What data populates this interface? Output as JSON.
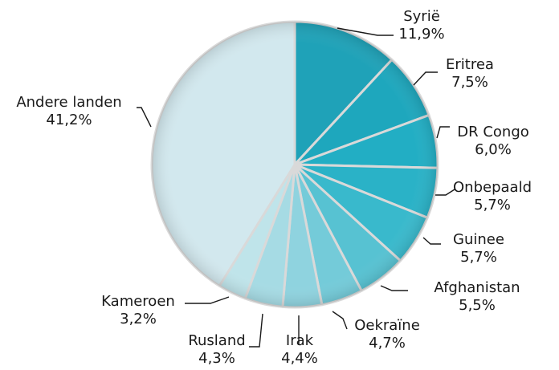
{
  "chart_data": {
    "type": "pie",
    "slices": [
      {
        "label": "Syrië",
        "value": 11.9,
        "display": "11,9%",
        "color": "#1fa2b8"
      },
      {
        "label": "Eritrea",
        "value": 7.5,
        "display": "7,5%",
        "color": "#1ea7bd"
      },
      {
        "label": "DR Congo",
        "value": 6.0,
        "display": "6,0%",
        "color": "#22aec4"
      },
      {
        "label": "Onbepaald",
        "value": 5.7,
        "display": "5,7%",
        "color": "#2ab2c7"
      },
      {
        "label": "Guinee",
        "value": 5.7,
        "display": "5,7%",
        "color": "#39b9cc"
      },
      {
        "label": "Afghanistan",
        "value": 5.5,
        "display": "5,5%",
        "color": "#57c2d2"
      },
      {
        "label": "Oekraïne",
        "value": 4.7,
        "display": "4,7%",
        "color": "#74cbd9"
      },
      {
        "label": "Irak",
        "value": 4.4,
        "display": "4,4%",
        "color": "#8fd3df"
      },
      {
        "label": "Rusland",
        "value": 4.3,
        "display": "4,3%",
        "color": "#a6dbe4"
      },
      {
        "label": "Kameroen",
        "value": 3.2,
        "display": "3,2%",
        "color": "#bfe4ea"
      },
      {
        "label": "Andere landen",
        "value": 41.2,
        "display": "41,2%",
        "color": "#d2e8ee"
      }
    ]
  }
}
